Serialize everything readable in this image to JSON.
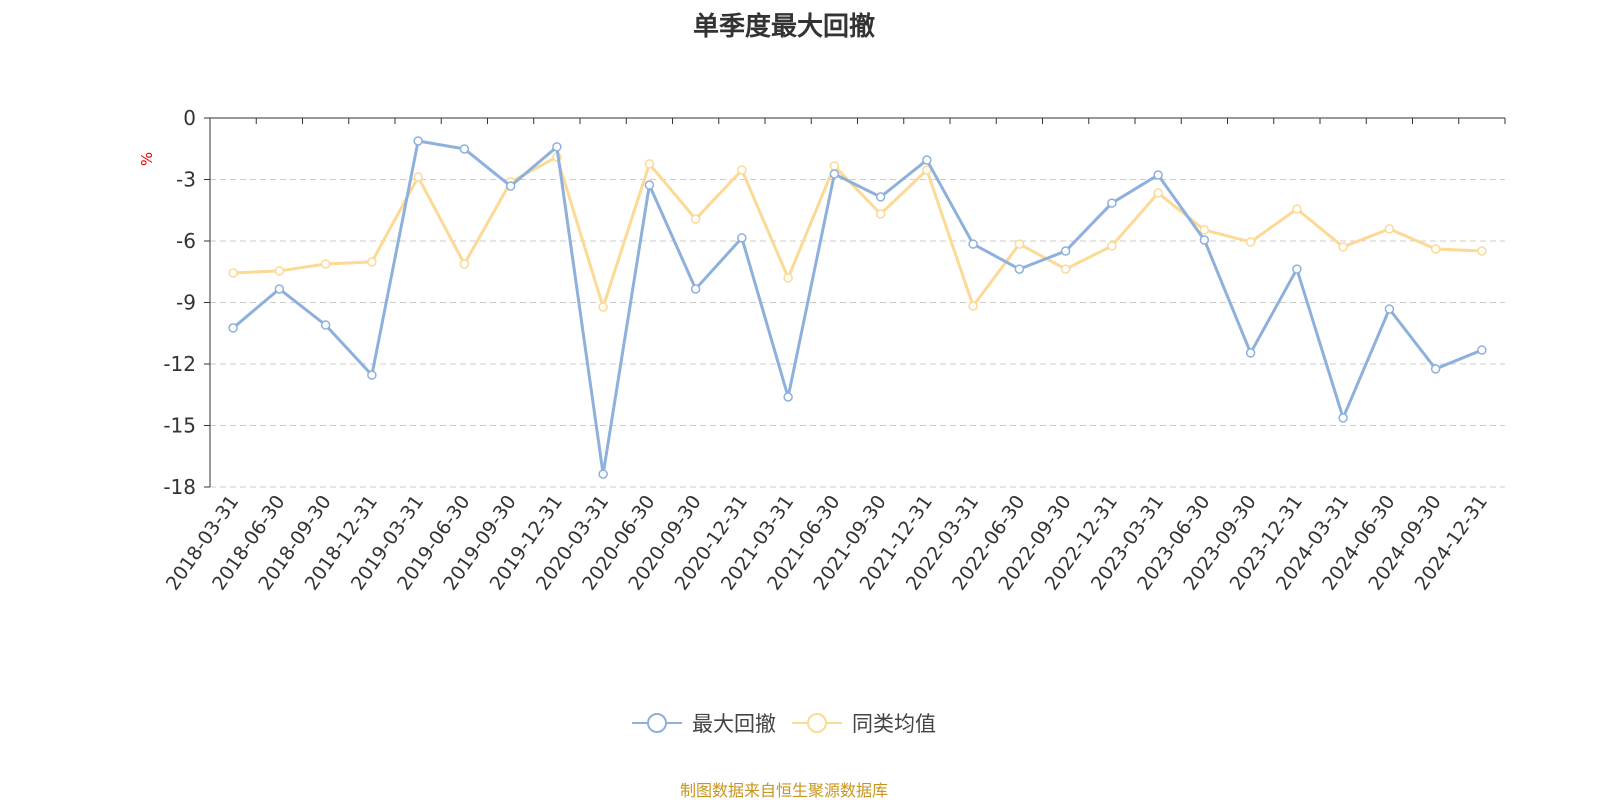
{
  "chart_data": {
    "type": "line",
    "title": "单季度最大回撤",
    "ylabel": "%",
    "ylim": [
      -18,
      0
    ],
    "yticks": [
      0,
      -3,
      -6,
      -9,
      -12,
      -15,
      -18
    ],
    "grid": true,
    "legend_position": "bottom",
    "categories": [
      "2018-03-31",
      "2018-06-30",
      "2018-09-30",
      "2018-12-31",
      "2019-03-31",
      "2019-06-30",
      "2019-09-30",
      "2019-12-31",
      "2020-03-31",
      "2020-06-30",
      "2020-09-30",
      "2020-12-31",
      "2021-03-31",
      "2021-06-30",
      "2021-09-30",
      "2021-12-31",
      "2022-03-31",
      "2022-06-30",
      "2022-09-30",
      "2022-12-31",
      "2023-03-31",
      "2023-06-30",
      "2023-09-30",
      "2023-12-31",
      "2024-03-31",
      "2024-06-30",
      "2024-09-30",
      "2024-12-31"
    ],
    "series": [
      {
        "name": "最大回撤",
        "color": "#8eb0dc",
        "values": [
          -10.24,
          -8.34,
          -10.1,
          -12.54,
          -1.12,
          -1.51,
          -3.32,
          -1.41,
          -17.37,
          -3.27,
          -8.34,
          -5.85,
          -13.61,
          -2.73,
          -3.85,
          -2.05,
          -6.15,
          -7.37,
          -6.49,
          -4.15,
          -2.78,
          -5.95,
          -11.46,
          -7.37,
          -14.63,
          -9.32,
          -12.24,
          -11.32
        ]
      },
      {
        "name": "同类均值",
        "color": "#fcd994",
        "values": [
          -7.56,
          -7.46,
          -7.12,
          -7.02,
          -2.88,
          -7.12,
          -3.12,
          -1.9,
          -9.22,
          -2.24,
          -4.93,
          -2.54,
          -7.8,
          -2.34,
          -4.68,
          -2.54,
          -9.17,
          -6.15,
          -7.37,
          -6.24,
          -3.66,
          -5.46,
          -6.05,
          -4.44,
          -6.29,
          -5.41,
          -6.39,
          -6.49
        ]
      }
    ]
  },
  "source": "制图数据来自恒生聚源数据库"
}
